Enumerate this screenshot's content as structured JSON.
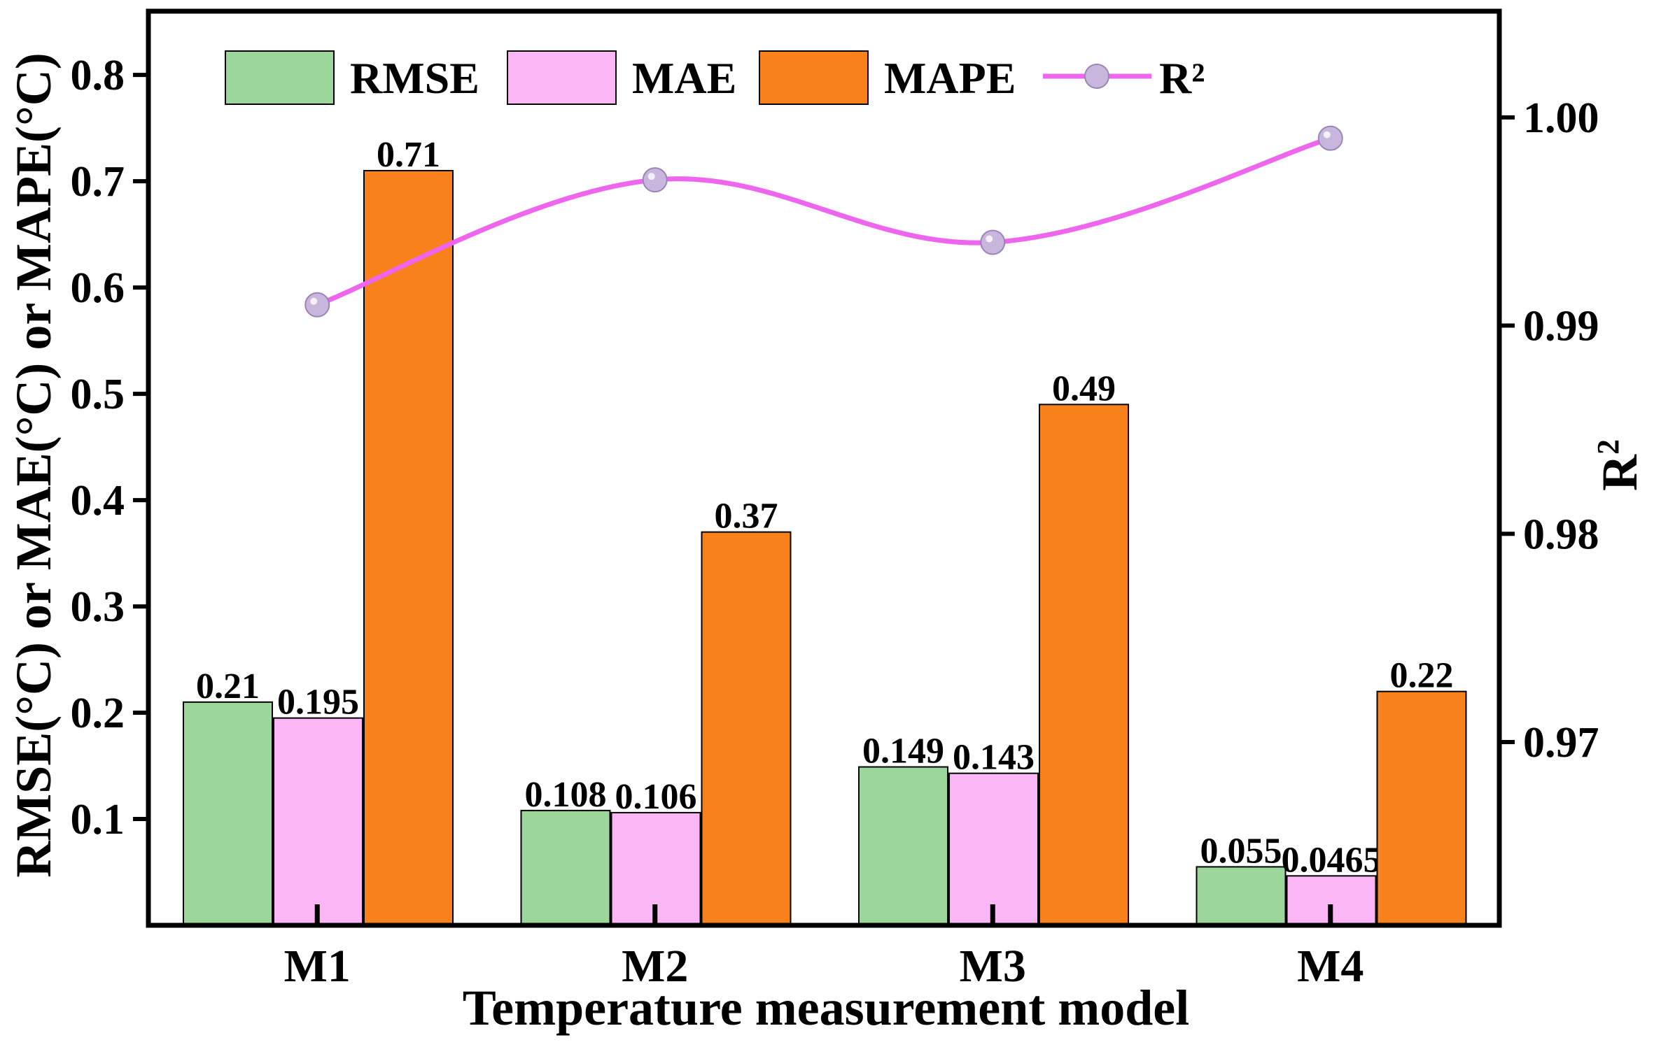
{
  "chart_data": {
    "type": "bar",
    "categories": [
      "M1",
      "M2",
      "M3",
      "M4"
    ],
    "series": [
      {
        "name": "RMSE",
        "axis": "left",
        "color": "#9dd69b",
        "values": [
          0.21,
          0.108,
          0.149,
          0.055
        ],
        "labels": [
          "0.21",
          "0.108",
          "0.149",
          "0.055"
        ]
      },
      {
        "name": "MAE",
        "axis": "left",
        "color": "#fbb6f5",
        "values": [
          0.195,
          0.106,
          0.143,
          0.0465
        ],
        "labels": [
          "0.195",
          "0.106",
          "0.143",
          "0.0465"
        ]
      },
      {
        "name": "MAPE",
        "axis": "left",
        "color": "#f8811b",
        "values": [
          0.71,
          0.37,
          0.49,
          0.22
        ],
        "labels": [
          "0.71",
          "0.37",
          "0.49",
          "0.22"
        ]
      }
    ],
    "line_series": {
      "name": "R²",
      "axis": "right",
      "color": "#ee66ee",
      "marker_color": "#c8b6dc",
      "values": [
        0.991,
        0.997,
        0.994,
        0.999
      ]
    },
    "legend": [
      "RMSE",
      "MAE",
      "MAPE",
      "R²"
    ],
    "legend_position": "top",
    "xlabel": "Temperature measurement model",
    "ylabel": "RMSE(°C) or MAE(°C) or MAPE(°C)",
    "y2label": "R²",
    "ylim": [
      0.0,
      0.86
    ],
    "y2lim": [
      0.9612,
      1.0051
    ],
    "yticks": [
      "0.1",
      "0.2",
      "0.3",
      "0.4",
      "0.5",
      "0.6",
      "0.7",
      "0.8"
    ],
    "y2ticks": [
      "0.97",
      "0.98",
      "0.99",
      "1.00"
    ],
    "grid": false
  }
}
